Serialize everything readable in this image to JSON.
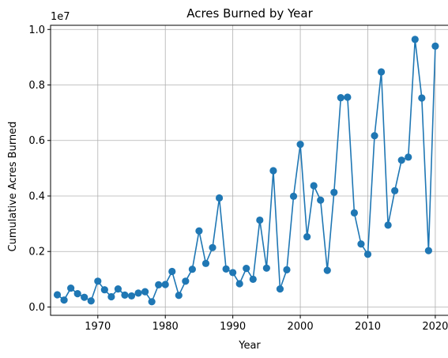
{
  "chart_data": {
    "type": "line",
    "title": "Acres Burned by Year",
    "xlabel": "Year",
    "ylabel": "Cumulative Acres Burned",
    "y_offset_text": "1e7",
    "grid": true,
    "marker": "circle",
    "color": "#1f77b4",
    "xlim": [
      1963,
      2022
    ],
    "ylim": [
      -0.03,
      1.015
    ],
    "y_scale_factor": 10000000,
    "x_ticks": [
      1970,
      1980,
      1990,
      2000,
      2010,
      2020
    ],
    "x_tick_labels": [
      "1970",
      "1980",
      "1990",
      "2000",
      "2010",
      "2020"
    ],
    "y_ticks": [
      0.0,
      0.2,
      0.4,
      0.6,
      0.8,
      1.0
    ],
    "y_tick_labels": [
      "0.0",
      "0.2",
      "0.4",
      "0.6",
      "0.8",
      "1.0"
    ],
    "x": [
      1964,
      1965,
      1966,
      1967,
      1968,
      1969,
      1970,
      1971,
      1972,
      1973,
      1974,
      1975,
      1976,
      1977,
      1978,
      1979,
      1980,
      1981,
      1982,
      1983,
      1984,
      1985,
      1986,
      1987,
      1988,
      1989,
      1990,
      1991,
      1992,
      1993,
      1994,
      1995,
      1996,
      1997,
      1998,
      1999,
      2000,
      2001,
      2002,
      2003,
      2004,
      2005,
      2006,
      2007,
      2008,
      2009,
      2010,
      2011,
      2012,
      2013,
      2014,
      2015,
      2016,
      2017,
      2018,
      2019,
      2020
    ],
    "y": [
      0.044,
      0.025,
      0.068,
      0.048,
      0.035,
      0.022,
      0.093,
      0.062,
      0.037,
      0.065,
      0.043,
      0.04,
      0.05,
      0.055,
      0.019,
      0.08,
      0.081,
      0.128,
      0.042,
      0.093,
      0.136,
      0.274,
      0.157,
      0.214,
      0.393,
      0.137,
      0.124,
      0.084,
      0.139,
      0.1,
      0.313,
      0.14,
      0.491,
      0.065,
      0.134,
      0.399,
      0.586,
      0.253,
      0.437,
      0.385,
      0.132,
      0.413,
      0.754,
      0.756,
      0.339,
      0.227,
      0.19,
      0.617,
      0.847,
      0.295,
      0.419,
      0.529,
      0.54,
      0.964,
      0.753,
      0.203,
      0.94
    ]
  }
}
